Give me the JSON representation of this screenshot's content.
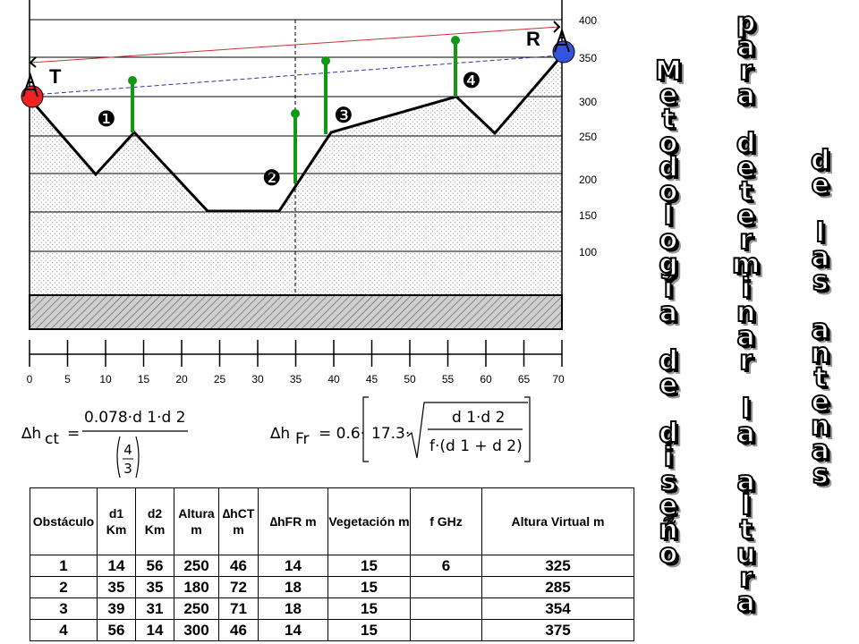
{
  "profile": {
    "y_ticks": [
      "400",
      "350",
      "300",
      "250",
      "200",
      "150",
      "100"
    ],
    "x_ticks": [
      "0",
      "5",
      "10",
      "15",
      "20",
      "25",
      "30",
      "35",
      "40",
      "45",
      "50",
      "55",
      "60",
      "65",
      "70"
    ],
    "tx_label": "T",
    "rx_label": "R",
    "obstacle_markers": [
      "❶",
      "❷",
      "❸",
      "❹"
    ]
  },
  "formulas": {
    "ct": {
      "lhs_sym": "∆h",
      "lhs_sub": "ct",
      "eq": "=",
      "num": "0.078·d 1·d 2",
      "den": "4/3"
    },
    "fr": {
      "lhs_sym": "∆h",
      "lhs_sub": "Fr",
      "eq": "= 0.6·",
      "coef": "17.3·",
      "num": "d 1·d 2",
      "den": "f·(d 1 + d 2)"
    }
  },
  "title": {
    "col1": "Metodología de diseño",
    "col2": "para determinar la altura",
    "col3": "de las antenas"
  },
  "table": {
    "headers": [
      "Obstáculo",
      "d1 Km",
      "d2 Km",
      "Altura m",
      "∆hCT m",
      "∆hFR m",
      "Vegetación m",
      "f GHz",
      "Altura Virtual m"
    ],
    "rows": [
      [
        "1",
        "14",
        "56",
        "250",
        "46",
        "14",
        "15",
        "6",
        "325"
      ],
      [
        "2",
        "35",
        "35",
        "180",
        "72",
        "18",
        "15",
        "",
        "285"
      ],
      [
        "3",
        "39",
        "31",
        "250",
        "71",
        "18",
        "15",
        "",
        "354"
      ],
      [
        "4",
        "56",
        "14",
        "300",
        "46",
        "14",
        "15",
        "",
        "375"
      ]
    ]
  },
  "colors": {
    "tx": "#ee2222",
    "rx": "#3355dd",
    "obstacle": "#119911",
    "los_red": "#cc3333",
    "los_blue": "#3333aa"
  }
}
